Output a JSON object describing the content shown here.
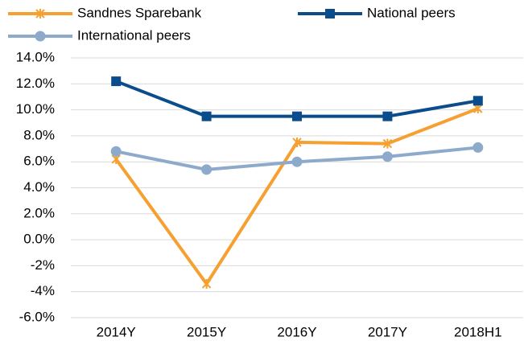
{
  "chart_data": {
    "type": "line",
    "categories": [
      "2014Y",
      "2015Y",
      "2016Y",
      "2017Y",
      "2018H1"
    ],
    "series": [
      {
        "name": "Sandnes Sparebank",
        "color": "#f5a031",
        "marker": "x",
        "values": [
          6.2,
          -3.4,
          7.5,
          7.4,
          10.1
        ]
      },
      {
        "name": "National peers",
        "color": "#0b4c8c",
        "marker": "square",
        "values": [
          12.2,
          9.5,
          9.5,
          9.5,
          10.7
        ]
      },
      {
        "name": "International peers",
        "color": "#8eaacb",
        "marker": "circle",
        "values": [
          6.8,
          5.4,
          6.0,
          6.4,
          7.1
        ]
      }
    ],
    "ylim": [
      -6,
      14
    ],
    "yticks": [
      {
        "value": -6,
        "label": "-6.0%"
      },
      {
        "value": -4,
        "label": "-4%"
      },
      {
        "value": -2,
        "label": "-2%"
      },
      {
        "value": 0,
        "label": "0.0%"
      },
      {
        "value": 2,
        "label": "2.0%"
      },
      {
        "value": 4,
        "label": "4.0%"
      },
      {
        "value": 6,
        "label": "6.0%"
      },
      {
        "value": 8,
        "label": "8.0%"
      },
      {
        "value": 10,
        "label": "10.0%"
      },
      {
        "value": 12,
        "label": "12.0%"
      },
      {
        "value": 14,
        "label": "14.0%"
      }
    ],
    "grid": true
  }
}
